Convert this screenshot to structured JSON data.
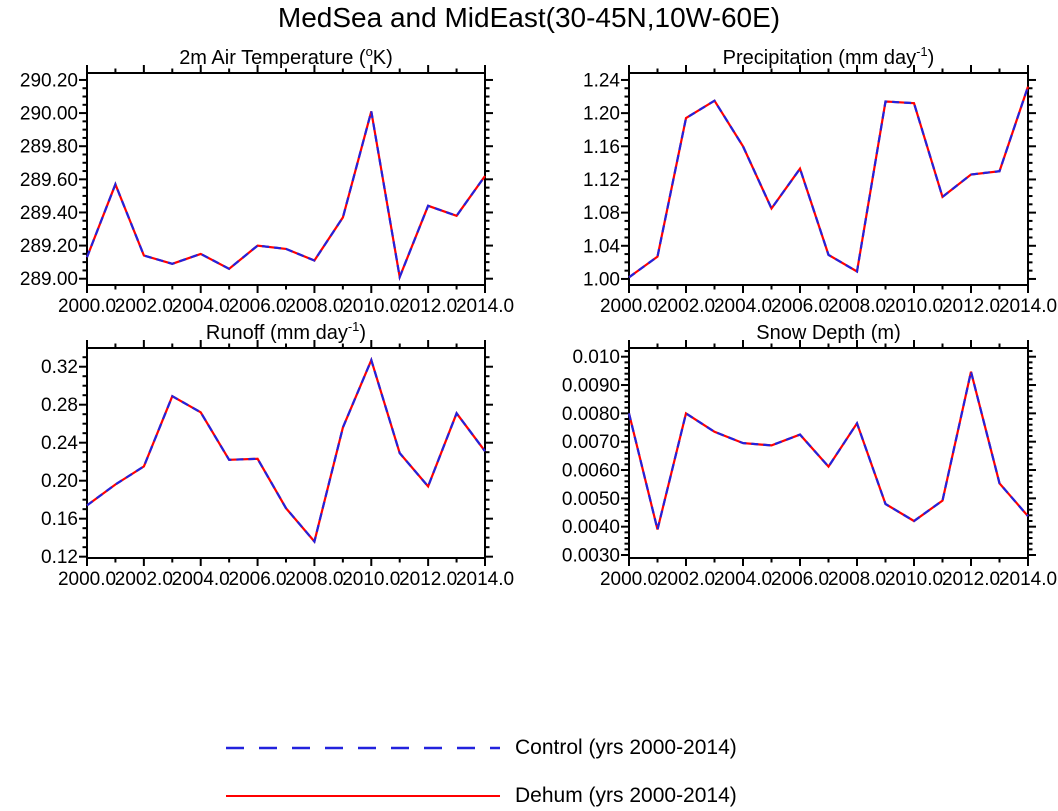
{
  "title": "MedSea and MidEast(30-45N,10W-60E)",
  "legend": {
    "items": [
      {
        "label": "Control (yrs 2000-2014)",
        "color": "#2222dd",
        "style": "dashed"
      },
      {
        "label": "Dehum (yrs 2000-2014)",
        "color": "#ff0000",
        "style": "solid"
      }
    ]
  },
  "chart_data": [
    {
      "type": "line",
      "title": "2m Air Temperature (°K)",
      "title_parts": [
        {
          "text": "2m Air Temperature ("
        },
        {
          "text": "o",
          "sup": true
        },
        {
          "text": "K)"
        }
      ],
      "x": [
        2000,
        2001,
        2002,
        2003,
        2004,
        2005,
        2006,
        2007,
        2008,
        2009,
        2010,
        2011,
        2012,
        2013,
        2014
      ],
      "xlim": [
        2000,
        2014
      ],
      "ylim": [
        288.962,
        290.242
      ],
      "xticks": [
        2000,
        2002,
        2004,
        2006,
        2008,
        2010,
        2012,
        2014
      ],
      "xtick_labels": [
        "2000.0",
        "2002.0",
        "2004.0",
        "2006.0",
        "2008.0",
        "2010.0",
        "2012.0",
        "2014.0"
      ],
      "x_minor_step": 1,
      "yticks": [
        289.0,
        289.2,
        289.4,
        289.6,
        289.8,
        290.0,
        290.2
      ],
      "ytick_labels": [
        "289.00",
        "289.20",
        "289.40",
        "289.60",
        "289.80",
        "290.00",
        "290.20"
      ],
      "y_minor_step": 0.05,
      "series": [
        {
          "name": "Control (yrs 2000-2014)",
          "color": "#2222dd",
          "style": "dashed",
          "values": [
            289.13,
            289.57,
            289.14,
            289.09,
            289.15,
            289.06,
            289.2,
            289.18,
            289.11,
            289.37,
            290.01,
            289.01,
            289.44,
            289.38,
            289.62
          ]
        },
        {
          "name": "Dehum (yrs 2000-2014)",
          "color": "#ff0000",
          "style": "solid",
          "values": [
            289.13,
            289.57,
            289.14,
            289.09,
            289.15,
            289.06,
            289.2,
            289.18,
            289.11,
            289.37,
            290.01,
            289.01,
            289.44,
            289.38,
            289.62
          ]
        }
      ]
    },
    {
      "type": "line",
      "title": "Precipitation (mm day⁻¹)",
      "title_parts": [
        {
          "text": "Precipitation (mm day"
        },
        {
          "text": "-1",
          "sup": true
        },
        {
          "text": ")"
        }
      ],
      "x": [
        2000,
        2001,
        2002,
        2003,
        2004,
        2005,
        2006,
        2007,
        2008,
        2009,
        2010,
        2011,
        2012,
        2013,
        2014
      ],
      "xlim": [
        2000,
        2014
      ],
      "ylim": [
        0.9927,
        1.2484
      ],
      "xticks": [
        2000,
        2002,
        2004,
        2006,
        2008,
        2010,
        2012,
        2014
      ],
      "xtick_labels": [
        "2000.0",
        "2002.0",
        "2004.0",
        "2006.0",
        "2008.0",
        "2010.0",
        "2012.0",
        "2014.0"
      ],
      "x_minor_step": 1,
      "yticks": [
        1.0,
        1.04,
        1.08,
        1.12,
        1.16,
        1.2,
        1.24
      ],
      "ytick_labels": [
        "1.00",
        "1.04",
        "1.08",
        "1.12",
        "1.16",
        "1.20",
        "1.24"
      ],
      "y_minor_step": 0.01,
      "series": [
        {
          "name": "Control (yrs 2000-2014)",
          "color": "#2222dd",
          "style": "dashed",
          "values": [
            1.002,
            1.027,
            1.194,
            1.215,
            1.16,
            1.085,
            1.133,
            1.029,
            1.009,
            1.214,
            1.212,
            1.099,
            1.126,
            1.13,
            1.232
          ]
        },
        {
          "name": "Dehum (yrs 2000-2014)",
          "color": "#ff0000",
          "style": "solid",
          "values": [
            1.002,
            1.027,
            1.194,
            1.215,
            1.16,
            1.085,
            1.133,
            1.029,
            1.009,
            1.214,
            1.212,
            1.099,
            1.126,
            1.13,
            1.232
          ]
        }
      ]
    },
    {
      "type": "line",
      "title": "Runoff (mm day⁻¹)",
      "title_parts": [
        {
          "text": "Runoff (mm day"
        },
        {
          "text": "-1",
          "sup": true
        },
        {
          "text": ")"
        }
      ],
      "x": [
        2000,
        2001,
        2002,
        2003,
        2004,
        2005,
        2006,
        2007,
        2008,
        2009,
        2010,
        2011,
        2012,
        2013,
        2014
      ],
      "xlim": [
        2000,
        2014
      ],
      "ylim": [
        0.1186,
        0.3397
      ],
      "xticks": [
        2000,
        2002,
        2004,
        2006,
        2008,
        2010,
        2012,
        2014
      ],
      "xtick_labels": [
        "2000.0",
        "2002.0",
        "2004.0",
        "2006.0",
        "2008.0",
        "2010.0",
        "2012.0",
        "2014.0"
      ],
      "x_minor_step": 1,
      "yticks": [
        0.12,
        0.16,
        0.2,
        0.24,
        0.28,
        0.32
      ],
      "ytick_labels": [
        "0.12",
        "0.16",
        "0.20",
        "0.24",
        "0.28",
        "0.32"
      ],
      "y_minor_step": 0.01,
      "series": [
        {
          "name": "Control (yrs 2000-2014)",
          "color": "#2222dd",
          "style": "dashed",
          "values": [
            0.174,
            0.196,
            0.215,
            0.289,
            0.272,
            0.222,
            0.223,
            0.171,
            0.136,
            0.256,
            0.327,
            0.229,
            0.194,
            0.271,
            0.231
          ]
        },
        {
          "name": "Dehum (yrs 2000-2014)",
          "color": "#ff0000",
          "style": "solid",
          "values": [
            0.174,
            0.196,
            0.215,
            0.289,
            0.272,
            0.222,
            0.223,
            0.171,
            0.136,
            0.256,
            0.327,
            0.229,
            0.194,
            0.271,
            0.231
          ]
        }
      ]
    },
    {
      "type": "line",
      "title": "Snow Depth (m)",
      "title_parts": [
        {
          "text": "Snow Depth (m)"
        }
      ],
      "x": [
        2000,
        2001,
        2002,
        2003,
        2004,
        2005,
        2006,
        2007,
        2008,
        2009,
        2010,
        2011,
        2012,
        2013,
        2014
      ],
      "xlim": [
        2000,
        2014
      ],
      "ylim": [
        0.002894,
        0.010307
      ],
      "xticks": [
        2000,
        2002,
        2004,
        2006,
        2008,
        2010,
        2012,
        2014
      ],
      "xtick_labels": [
        "2000.0",
        "2002.0",
        "2004.0",
        "2006.0",
        "2008.0",
        "2010.0",
        "2012.0",
        "2014.0"
      ],
      "x_minor_step": 1,
      "yticks": [
        0.003,
        0.004,
        0.005,
        0.006,
        0.007,
        0.008,
        0.009,
        0.01
      ],
      "ytick_labels": [
        "0.0030",
        "0.0040",
        "0.0050",
        "0.0060",
        "0.0070",
        "0.0080",
        "0.0090",
        "0.010"
      ],
      "y_minor_step": 0.0002,
      "series": [
        {
          "name": "Control (yrs 2000-2014)",
          "color": "#2222dd",
          "style": "dashed",
          "values": [
            0.008,
            0.0039,
            0.008,
            0.00735,
            0.00695,
            0.00687,
            0.00725,
            0.00612,
            0.00765,
            0.0048,
            0.0042,
            0.00492,
            0.00947,
            0.00553,
            0.00437
          ]
        },
        {
          "name": "Dehum (yrs 2000-2014)",
          "color": "#ff0000",
          "style": "solid",
          "values": [
            0.008,
            0.0039,
            0.008,
            0.00735,
            0.00695,
            0.00687,
            0.00725,
            0.00612,
            0.00765,
            0.0048,
            0.0042,
            0.00492,
            0.00947,
            0.00553,
            0.00437
          ]
        }
      ]
    }
  ]
}
